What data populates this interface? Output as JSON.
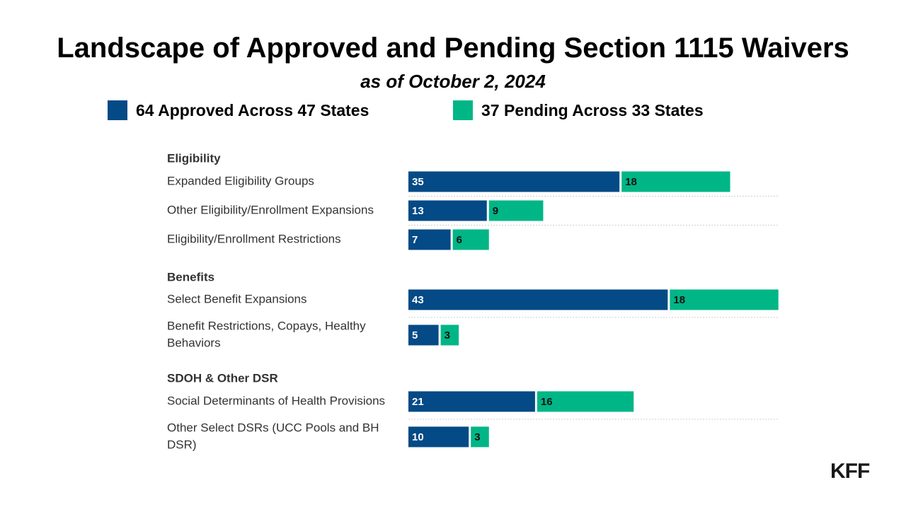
{
  "header": {
    "title": "Landscape of Approved and Pending Section 1115 Waivers",
    "subtitle": "as of October 2, 2024"
  },
  "logo": "KFF",
  "colors": {
    "approved": "#044a86",
    "pending": "#00b686"
  },
  "chart_data": {
    "type": "bar",
    "orientation": "horizontal",
    "stacked": true,
    "legend_position": "top",
    "series": [
      {
        "name": "64 Approved Across 47 States",
        "values": [
          35,
          13,
          7,
          43,
          5,
          21,
          10
        ]
      },
      {
        "name": "37 Pending Across 33 States",
        "values": [
          18,
          9,
          6,
          18,
          3,
          16,
          3
        ]
      }
    ],
    "groups": [
      {
        "label": "Eligibility",
        "categories": [
          "Expanded Eligibility Groups",
          "Other Eligibility/Enrollment Expansions",
          "Eligibility/Enrollment Restrictions"
        ]
      },
      {
        "label": "Benefits",
        "categories": [
          "Select Benefit Expansions",
          "Benefit Restrictions, Copays, Healthy Behaviors"
        ]
      },
      {
        "label": "SDOH & Other DSR",
        "categories": [
          "Social Determinants of Health Provisions",
          "Other Select DSRs (UCC Pools and BH DSR)"
        ]
      }
    ]
  }
}
